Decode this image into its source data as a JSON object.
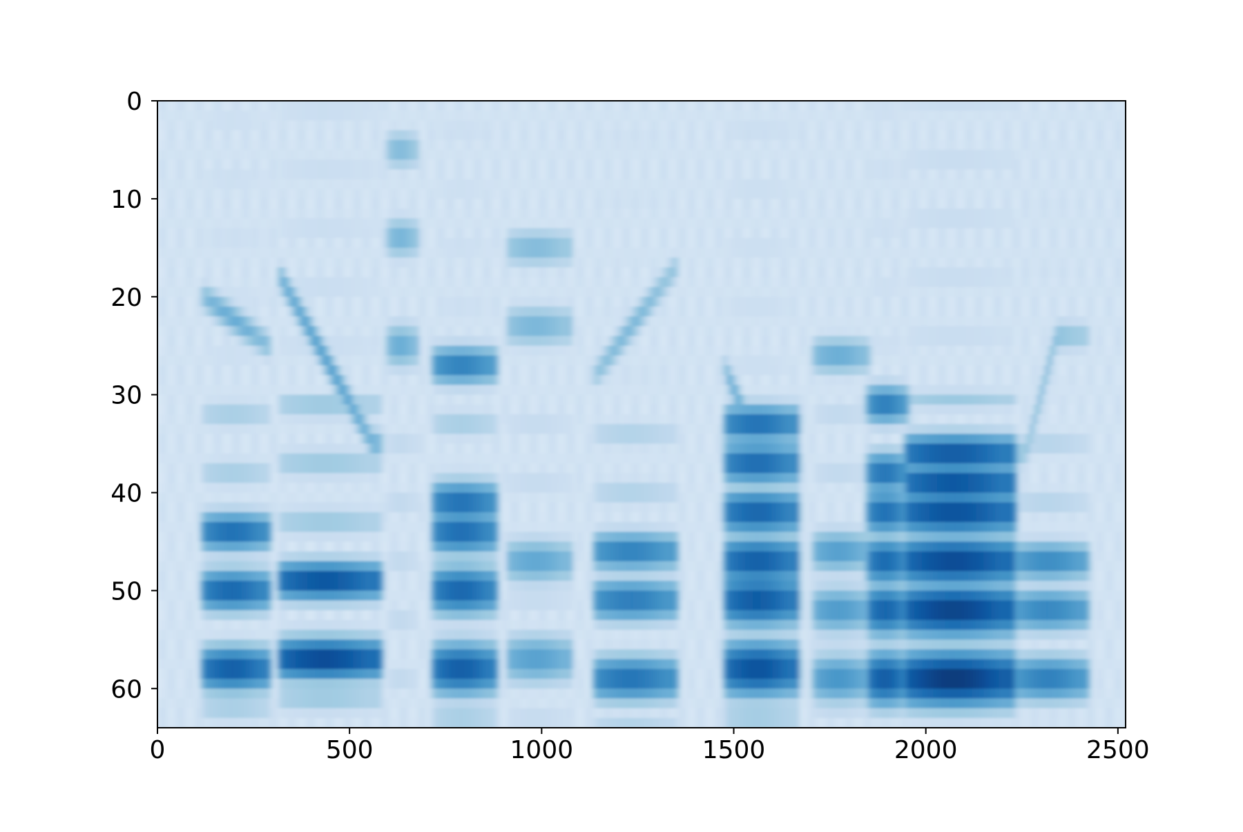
{
  "chart_data": {
    "type": "heatmap",
    "title": "",
    "xlabel": "",
    "ylabel": "",
    "colormap": "Blues",
    "colors": {
      "low": "#f7fbff",
      "high": "#08306b"
    },
    "xlim": [
      0,
      2520
    ],
    "ylim": [
      64,
      0
    ],
    "x_ticks": [
      0,
      500,
      1000,
      1500,
      2000,
      2500
    ],
    "y_ticks": [
      0,
      10,
      20,
      30,
      40,
      50,
      60
    ],
    "x_tick_labels": [
      "0",
      "500",
      "1000",
      "1500",
      "2000",
      "2500"
    ],
    "y_tick_labels": [
      "0",
      "10",
      "20",
      "30",
      "40",
      "50",
      "60"
    ],
    "grid": false,
    "legend": "none",
    "silence_intervals": [
      [
        0,
        115
      ],
      [
        290,
        320
      ],
      [
        675,
        720
      ],
      [
        880,
        915
      ],
      [
        1075,
        1140
      ],
      [
        1350,
        1480
      ],
      [
        1665,
        1710
      ],
      [
        2420,
        2520
      ]
    ],
    "segments": [
      {
        "x": [
          120,
          290
        ],
        "intensity": 0.85,
        "band_peaks": [
          44,
          50,
          58
        ],
        "formant": [
          [
            120,
            20
          ],
          [
            290,
            25
          ]
        ]
      },
      {
        "x": [
          320,
          580
        ],
        "intensity": 0.95,
        "band_peaks": [
          49,
          57
        ],
        "formant": [
          [
            320,
            18
          ],
          [
            560,
            35
          ]
        ]
      },
      {
        "x": [
          600,
          675
        ],
        "intensity": 0.6,
        "band_peaks": [
          5,
          14,
          25
        ]
      },
      {
        "x": [
          720,
          880
        ],
        "intensity": 0.85,
        "band_peaks": [
          27,
          41,
          44,
          50,
          58
        ]
      },
      {
        "x": [
          915,
          1075
        ],
        "intensity": 0.55,
        "band_peaks": [
          15,
          23,
          47,
          57
        ]
      },
      {
        "x": [
          1140,
          1350
        ],
        "intensity": 0.75,
        "band_peaks": [
          46,
          51,
          59
        ],
        "formant": [
          [
            1140,
            28
          ],
          [
            1350,
            17
          ]
        ]
      },
      {
        "x": [
          1480,
          1665
        ],
        "intensity": 0.9,
        "band_peaks": [
          33,
          37,
          42,
          47,
          51,
          58
        ],
        "formant": [
          [
            1450,
            25
          ],
          [
            1540,
            33
          ]
        ]
      },
      {
        "x": [
          1710,
          1850
        ],
        "intensity": 0.6,
        "band_peaks": [
          26,
          46,
          52,
          59
        ]
      },
      {
        "x": [
          1850,
          1950
        ],
        "intensity": 0.85,
        "band_peaks": [
          31,
          38,
          42,
          47,
          52,
          59
        ]
      },
      {
        "x": [
          1950,
          2230
        ],
        "intensity": 1.0,
        "band_peaks": [
          36,
          39,
          42,
          47,
          52,
          59
        ]
      },
      {
        "x": [
          2240,
          2420
        ],
        "intensity": 0.7,
        "band_peaks": [
          47,
          52,
          59
        ],
        "formant": [
          [
            2260,
            36
          ],
          [
            2340,
            24
          ]
        ]
      }
    ]
  }
}
